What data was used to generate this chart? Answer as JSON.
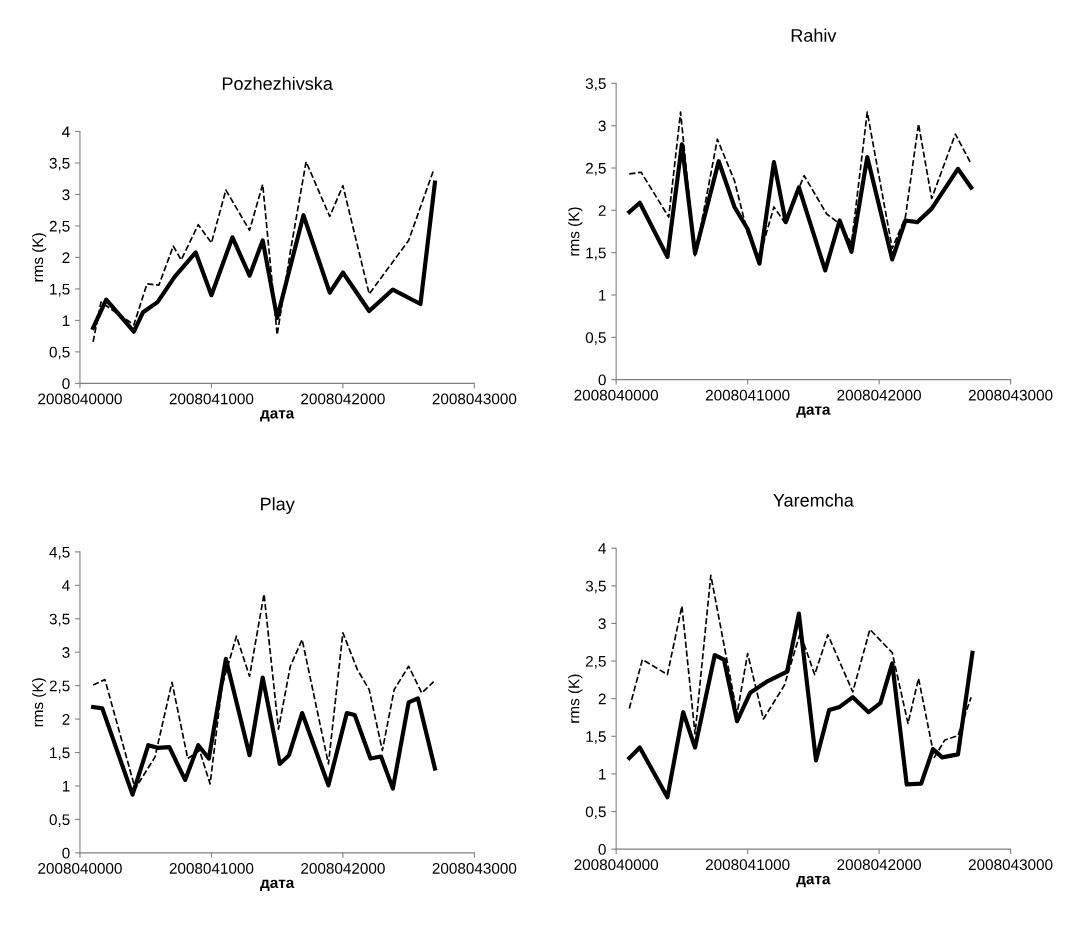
{
  "chart_data": [
    {
      "type": "line",
      "title": "Pozhezhivska",
      "xlabel": "дата",
      "ylabel": "rms (K)",
      "xlim": [
        2008040000,
        2008043000
      ],
      "xticks": [
        2008040000,
        2008041000,
        2008042000,
        2008043000
      ],
      "ylim": [
        0,
        4
      ],
      "yticks": [
        0,
        {
          "value": 0.5,
          "label": "0,5"
        },
        1,
        {
          "value": 1.5,
          "label": "1,5"
        },
        2,
        {
          "value": 2.5,
          "label": "2,5"
        },
        3,
        {
          "value": 3.5,
          "label": "3,5"
        },
        4
      ],
      "grid": false,
      "marker": "none",
      "series": [
        {
          "color": "#000000",
          "line_style": "solid",
          "x": [
            2008040100,
            2008040200,
            2008040410,
            2008040480,
            2008040590,
            2008040720,
            2008040880,
            2008041000,
            2008041160,
            2008041290,
            2008041390,
            2008041500,
            2008041700,
            2008041900,
            2008042000,
            2008042200,
            2008042380,
            2008042590,
            2008042700
          ],
          "values": [
            0.88,
            1.33,
            0.82,
            1.13,
            1.29,
            1.69,
            2.08,
            1.4,
            2.32,
            1.71,
            2.27,
            1.04,
            2.67,
            1.44,
            1.76,
            1.15,
            1.49,
            1.26,
            3.19
          ]
        },
        {
          "color": "#000000",
          "line_style": "dashed",
          "x": [
            2008040100,
            2008040160,
            2008040410,
            2008040510,
            2008040600,
            2008040710,
            2008040770,
            2008040900,
            2008041000,
            2008041110,
            2008041290,
            2008041390,
            2008041500,
            2008041600,
            2008041720,
            2008041900,
            2008042000,
            2008042200,
            2008042500,
            2008042690
          ],
          "values": [
            0.66,
            1.29,
            0.93,
            1.58,
            1.56,
            2.18,
            1.96,
            2.52,
            2.23,
            3.07,
            2.43,
            3.16,
            0.77,
            2.09,
            3.52,
            2.65,
            3.14,
            1.42,
            2.27,
            3.39
          ]
        }
      ]
    },
    {
      "type": "line",
      "title": "Rahiv",
      "xlabel": "дата",
      "ylabel": "rms (K)",
      "xlim": [
        2008040000,
        2008043000
      ],
      "xticks": [
        2008040000,
        2008041000,
        2008042000,
        2008043000
      ],
      "ylim": [
        0,
        3.5
      ],
      "yticks": [
        0,
        {
          "value": 0.5,
          "label": "0,5"
        },
        1,
        {
          "value": 1.5,
          "label": "1,5"
        },
        2,
        {
          "value": 2.5,
          "label": "2,5"
        },
        3,
        {
          "value": 3.5,
          "label": "3,5"
        }
      ],
      "grid": false,
      "marker": "none",
      "series": [
        {
          "color": "#000000",
          "line_style": "solid",
          "x": [
            2008040100,
            2008040180,
            2008040390,
            2008040500,
            2008040600,
            2008040780,
            2008040900,
            2008041000,
            2008041090,
            2008041200,
            2008041290,
            2008041390,
            2008041590,
            2008041700,
            2008041790,
            2008041910,
            2008042100,
            2008042200,
            2008042290,
            2008042400,
            2008042600,
            2008042700
          ],
          "values": [
            1.98,
            2.09,
            1.45,
            2.78,
            1.49,
            2.58,
            2.04,
            1.78,
            1.37,
            2.57,
            1.86,
            2.27,
            1.29,
            1.88,
            1.51,
            2.63,
            1.42,
            1.88,
            1.86,
            2.02,
            2.49,
            2.27
          ]
        },
        {
          "color": "#000000",
          "line_style": "dashed",
          "x": [
            2008040100,
            2008040190,
            2008040400,
            2008040490,
            2008040600,
            2008040770,
            2008040900,
            2008041000,
            2008041090,
            2008041200,
            2008041280,
            2008041430,
            2008041600,
            2008041700,
            2008041790,
            2008041910,
            2008042100,
            2008042200,
            2008042300,
            2008042400,
            2008042580,
            2008042700
          ],
          "values": [
            2.43,
            2.45,
            1.92,
            3.16,
            1.45,
            2.84,
            2.35,
            1.73,
            1.45,
            2.04,
            1.86,
            2.41,
            1.96,
            1.84,
            1.61,
            3.16,
            1.55,
            1.92,
            3.02,
            2.14,
            2.9,
            2.55
          ]
        }
      ]
    },
    {
      "type": "line",
      "title": "Play",
      "xlabel": "дата",
      "ylabel": "rms (K)",
      "xlim": [
        2008040000,
        2008043000
      ],
      "xticks": [
        2008040000,
        2008041000,
        2008042000,
        2008043000
      ],
      "ylim": [
        0,
        4.5
      ],
      "yticks": [
        0,
        {
          "value": 0.5,
          "label": "0,5"
        },
        1,
        {
          "value": 1.5,
          "label": "1,5"
        },
        2,
        {
          "value": 2.5,
          "label": "2,5"
        },
        3,
        {
          "value": 3.5,
          "label": "3,5"
        },
        4,
        {
          "value": 4.5,
          "label": "4,5"
        }
      ],
      "grid": false,
      "marker": "none",
      "series": [
        {
          "color": "#000000",
          "line_style": "solid",
          "x": [
            2008040100,
            2008040170,
            2008040400,
            2008040520,
            2008040590,
            2008040680,
            2008040800,
            2008040900,
            2008040980,
            2008041110,
            2008041290,
            2008041390,
            2008041520,
            2008041590,
            2008041690,
            2008041890,
            2008042030,
            2008042090,
            2008042210,
            2008042290,
            2008042380,
            2008042500,
            2008042570,
            2008042700
          ],
          "values": [
            2.18,
            2.16,
            0.87,
            1.61,
            1.57,
            1.58,
            1.09,
            1.61,
            1.41,
            2.9,
            1.46,
            2.62,
            1.33,
            1.46,
            2.09,
            1.01,
            2.09,
            2.06,
            1.41,
            1.44,
            0.96,
            2.25,
            2.31,
            1.26
          ]
        },
        {
          "color": "#000000",
          "line_style": "dashed",
          "x": [
            2008040100,
            2008040190,
            2008040420,
            2008040570,
            2008040700,
            2008040820,
            2008040910,
            2008040990,
            2008041080,
            2008041190,
            2008041290,
            2008041400,
            2008041510,
            2008041600,
            2008041690,
            2008041890,
            2008042000,
            2008042110,
            2008042200,
            2008042300,
            2008042390,
            2008042500,
            2008042600,
            2008042690
          ],
          "values": [
            2.51,
            2.59,
            0.96,
            1.43,
            2.55,
            1.41,
            1.53,
            1.03,
            2.49,
            3.24,
            2.64,
            3.87,
            1.85,
            2.79,
            3.19,
            1.33,
            3.29,
            2.74,
            2.44,
            1.53,
            2.44,
            2.79,
            2.39,
            2.56
          ]
        }
      ]
    },
    {
      "type": "line",
      "title": "Yaremcha",
      "xlabel": "дата",
      "ylabel": "rms (K)",
      "xlim": [
        2008040000,
        2008043000
      ],
      "xticks": [
        2008040000,
        2008041000,
        2008042000,
        2008043000
      ],
      "ylim": [
        0,
        4
      ],
      "yticks": [
        0,
        {
          "value": 0.5,
          "label": "0,5"
        },
        1,
        {
          "value": 1.5,
          "label": "1,5"
        },
        2,
        {
          "value": 2.5,
          "label": "2,5"
        },
        3,
        {
          "value": 3.5,
          "label": "3,5"
        },
        4
      ],
      "grid": false,
      "marker": "none",
      "series": [
        {
          "color": "#000000",
          "line_style": "solid",
          "x": [
            2008040100,
            2008040180,
            2008040390,
            2008040510,
            2008040600,
            2008040750,
            2008040820,
            2008040920,
            2008041020,
            2008041150,
            2008041300,
            2008041390,
            2008041520,
            2008041620,
            2008041700,
            2008041800,
            2008041920,
            2008042010,
            2008042100,
            2008042210,
            2008042320,
            2008042410,
            2008042480,
            2008042600,
            2008042710
          ],
          "values": [
            1.21,
            1.35,
            0.69,
            1.82,
            1.35,
            2.58,
            2.52,
            1.7,
            2.08,
            2.23,
            2.36,
            3.13,
            1.18,
            1.85,
            1.89,
            2.02,
            1.82,
            1.94,
            2.47,
            0.86,
            0.87,
            1.33,
            1.22,
            1.26,
            2.61
          ]
        },
        {
          "color": "#000000",
          "line_style": "dashed",
          "x": [
            2008040100,
            2008040200,
            2008040390,
            2008040500,
            2008040600,
            2008040720,
            2008040920,
            2008041000,
            2008041120,
            2008041280,
            2008041400,
            2008041510,
            2008041610,
            2008041800,
            2008041930,
            2008042100,
            2008042220,
            2008042300,
            2008042420,
            2008042500,
            2008042600,
            2008042700
          ],
          "values": [
            1.87,
            2.52,
            2.32,
            3.23,
            1.53,
            3.64,
            1.8,
            2.6,
            1.73,
            2.18,
            2.87,
            2.32,
            2.85,
            2.09,
            2.92,
            2.61,
            1.67,
            2.27,
            1.22,
            1.45,
            1.51,
            2.02
          ]
        }
      ]
    }
  ]
}
